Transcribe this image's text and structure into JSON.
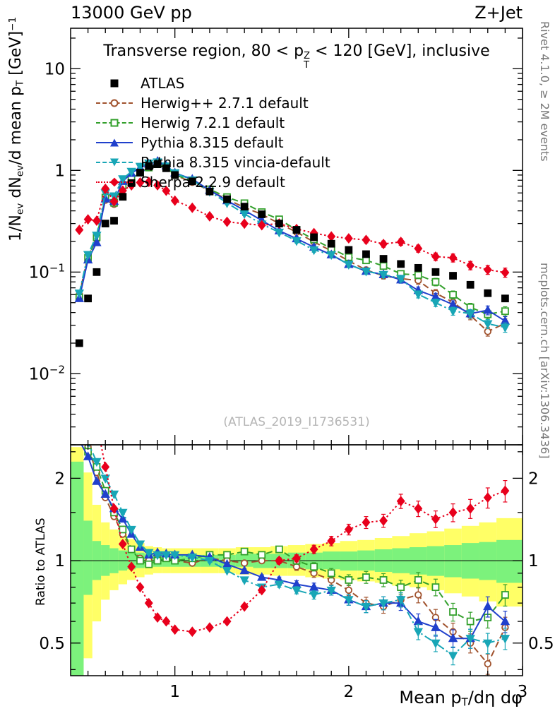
{
  "header": {
    "left": "13000 GeV pp",
    "right": "Z+Jet"
  },
  "side_notes": {
    "rivet": "Rivet 4.1.0, ≥ 2M events",
    "mcplots": "mcplots.cern.ch [arXiv:1306.3436]"
  },
  "watermark": "(ATLAS_2019_I1736531)",
  "chart_data": {
    "type": "line",
    "title_segments": [
      {
        "t": "Transverse region, 80 < p"
      },
      {
        "t": "Z",
        "pos": "sup-stack"
      },
      {
        "t": "T",
        "pos": "sub-stack"
      },
      {
        "t": " < 120 [GeV], inclusive"
      }
    ],
    "ylabel_main_segments": [
      {
        "t": "1/N"
      },
      {
        "t": "ev",
        "pos": "sub"
      },
      {
        "t": " dN"
      },
      {
        "t": "ev",
        "pos": "sub"
      },
      {
        "t": "/d mean p"
      },
      {
        "t": "T",
        "pos": "sub"
      },
      {
        "t": " [GeV]"
      },
      {
        "t": "−1",
        "pos": "sup"
      }
    ],
    "ylabel_ratio": "Ratio to ATLAS",
    "xlabel_segments": [
      {
        "t": "Mean p"
      },
      {
        "t": "T",
        "pos": "sub"
      },
      {
        "t": "/dη dφ"
      }
    ],
    "axes": {
      "xlim": [
        0.4,
        3.0
      ],
      "x_ticks": [
        1,
        2,
        3
      ],
      "x_minor_step": 0.1,
      "ylim_main": [
        0.002,
        25
      ],
      "y_ticks_main": [
        0.01,
        0.1,
        1,
        10
      ],
      "ylim_ratio": [
        0.38,
        2.65
      ],
      "y_ticks_ratio": [
        0.5,
        1,
        2
      ],
      "y_minor_ratio": [
        0.4,
        0.6,
        0.7,
        0.8,
        0.9,
        1.5,
        2.5
      ],
      "ref_line": 1,
      "grid": false,
      "legend_position": "top-left"
    },
    "x": [
      0.45,
      0.5,
      0.55,
      0.6,
      0.65,
      0.7,
      0.75,
      0.8,
      0.85,
      0.9,
      0.95,
      1.0,
      1.1,
      1.2,
      1.3,
      1.4,
      1.5,
      1.6,
      1.7,
      1.8,
      1.9,
      2.0,
      2.1,
      2.2,
      2.3,
      2.4,
      2.5,
      2.6,
      2.7,
      2.8,
      2.9
    ],
    "atlas_values": [
      0.02,
      0.055,
      0.1,
      0.3,
      0.32,
      0.55,
      0.75,
      0.95,
      1.1,
      1.15,
      1.05,
      0.9,
      0.78,
      0.62,
      0.52,
      0.44,
      0.37,
      0.3,
      0.26,
      0.22,
      0.19,
      0.165,
      0.15,
      0.135,
      0.12,
      0.11,
      0.1,
      0.092,
      0.075,
      0.062,
      0.055
    ],
    "series": [
      {
        "name": "ATLAS",
        "type": "data",
        "color": "#000000",
        "marker": "square",
        "fill": "filled",
        "line": "none"
      },
      {
        "name": "Herwig++ 2.7.1 default",
        "type": "mc",
        "color": "#a0522d",
        "marker": "circle",
        "fill": "open",
        "line": "dashed",
        "ratio": [
          3.0,
          2.6,
          2.1,
          1.7,
          1.45,
          1.25,
          1.1,
          1.02,
          1.0,
          1.02,
          1.03,
          1.0,
          0.98,
          1.02,
          1.0,
          0.98,
          1.0,
          1.0,
          0.95,
          0.9,
          0.85,
          0.78,
          0.7,
          0.68,
          0.72,
          0.75,
          0.62,
          0.55,
          0.5,
          0.42,
          0.57
        ]
      },
      {
        "name": "Herwig 7.2.1 default",
        "type": "mc",
        "color": "#33a02c",
        "marker": "square",
        "fill": "open",
        "line": "dashed",
        "ratio": [
          2.8,
          2.5,
          2.2,
          1.8,
          1.5,
          1.3,
          1.1,
          1.0,
          0.97,
          1.0,
          1.02,
          1.0,
          1.02,
          1.05,
          1.05,
          1.08,
          1.05,
          1.1,
          1.0,
          0.95,
          0.9,
          0.85,
          0.87,
          0.85,
          0.8,
          0.85,
          0.8,
          0.65,
          0.6,
          0.62,
          0.75
        ]
      },
      {
        "name": "Pythia 8.315 default",
        "type": "mc",
        "color": "#2040cc",
        "marker": "triangle-up",
        "fill": "filled",
        "line": "solid",
        "ratio": [
          2.75,
          2.4,
          1.95,
          1.75,
          1.55,
          1.42,
          1.25,
          1.12,
          1.05,
          1.07,
          1.06,
          1.05,
          1.05,
          1.03,
          0.97,
          0.92,
          0.87,
          0.85,
          0.82,
          0.8,
          0.78,
          0.72,
          0.68,
          0.7,
          0.7,
          0.6,
          0.57,
          0.52,
          0.52,
          0.68,
          0.6
        ]
      },
      {
        "name": "Pythia 8.315 vincia-default",
        "type": "mc",
        "color": "#18a6b6",
        "marker": "triangle-down",
        "fill": "filled",
        "line": "dashdot",
        "ratio": [
          3.1,
          2.7,
          2.3,
          2.0,
          1.75,
          1.5,
          1.3,
          1.15,
          1.07,
          1.05,
          1.05,
          1.05,
          1.03,
          1.0,
          0.92,
          0.85,
          0.8,
          0.82,
          0.78,
          0.75,
          0.78,
          0.72,
          0.68,
          0.7,
          0.72,
          0.55,
          0.5,
          0.45,
          0.52,
          0.5,
          0.52
        ]
      },
      {
        "name": "Sherpa 2.2.9 default",
        "type": "mc",
        "color": "#e8001c",
        "marker": "diamond",
        "fill": "filled",
        "line": "dotted",
        "ratio": [
          13.0,
          6.0,
          3.2,
          2.2,
          1.55,
          1.15,
          0.95,
          0.8,
          0.7,
          0.62,
          0.6,
          0.56,
          0.55,
          0.57,
          0.6,
          0.68,
          0.78,
          1.0,
          1.02,
          1.1,
          1.18,
          1.3,
          1.38,
          1.4,
          1.65,
          1.55,
          1.42,
          1.5,
          1.55,
          1.7,
          1.8
        ]
      }
    ],
    "bands": {
      "yellow_color": "#ffff66",
      "green_color": "#7cf27c",
      "yellow": [
        [
          0.3,
          2.6
        ],
        [
          0.44,
          2.1
        ],
        [
          0.6,
          1.6
        ],
        [
          0.72,
          1.38
        ],
        [
          0.78,
          1.3
        ],
        [
          0.82,
          1.25
        ],
        [
          0.85,
          1.2
        ],
        [
          0.87,
          1.16
        ],
        [
          0.89,
          1.13
        ],
        [
          0.9,
          1.12
        ],
        [
          0.9,
          1.11
        ],
        [
          0.9,
          1.11
        ],
        [
          0.9,
          1.11
        ],
        [
          0.9,
          1.11
        ],
        [
          0.9,
          1.11
        ],
        [
          0.89,
          1.12
        ],
        [
          0.89,
          1.12
        ],
        [
          0.88,
          1.13
        ],
        [
          0.88,
          1.14
        ],
        [
          0.87,
          1.15
        ],
        [
          0.86,
          1.16
        ],
        [
          0.85,
          1.18
        ],
        [
          0.84,
          1.19
        ],
        [
          0.83,
          1.21
        ],
        [
          0.81,
          1.23
        ],
        [
          0.8,
          1.26
        ],
        [
          0.78,
          1.28
        ],
        [
          0.76,
          1.31
        ],
        [
          0.74,
          1.34
        ],
        [
          0.71,
          1.38
        ],
        [
          0.68,
          1.43
        ]
      ],
      "green": [
        [
          0.34,
          2.3
        ],
        [
          0.75,
          1.4
        ],
        [
          0.85,
          1.18
        ],
        [
          0.88,
          1.14
        ],
        [
          0.9,
          1.11
        ],
        [
          0.92,
          1.09
        ],
        [
          0.93,
          1.08
        ],
        [
          0.94,
          1.07
        ],
        [
          0.95,
          1.06
        ],
        [
          0.95,
          1.05
        ],
        [
          0.95,
          1.05
        ],
        [
          0.95,
          1.05
        ],
        [
          0.95,
          1.05
        ],
        [
          0.95,
          1.05
        ],
        [
          0.95,
          1.05
        ],
        [
          0.95,
          1.06
        ],
        [
          0.94,
          1.06
        ],
        [
          0.94,
          1.06
        ],
        [
          0.94,
          1.07
        ],
        [
          0.93,
          1.07
        ],
        [
          0.93,
          1.08
        ],
        [
          0.92,
          1.08
        ],
        [
          0.92,
          1.09
        ],
        [
          0.91,
          1.1
        ],
        [
          0.9,
          1.11
        ],
        [
          0.89,
          1.12
        ],
        [
          0.88,
          1.13
        ],
        [
          0.87,
          1.14
        ],
        [
          0.86,
          1.16
        ],
        [
          0.85,
          1.17
        ],
        [
          0.83,
          1.19
        ]
      ]
    }
  }
}
